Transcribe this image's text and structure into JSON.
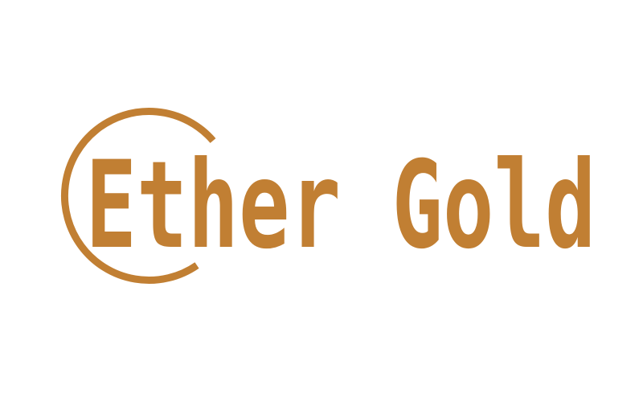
{
  "logo": {
    "wordmark": "Ether Gold",
    "accent_color": "#C17F33",
    "background_color": "#FFFFFF"
  }
}
